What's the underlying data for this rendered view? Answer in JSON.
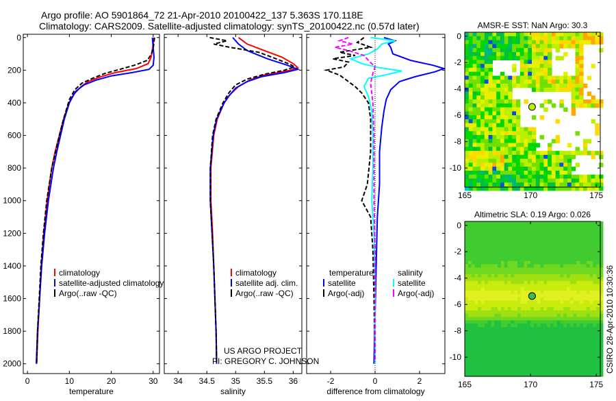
{
  "title": {
    "line1": "Argo profile: AO 5901864_72 21-Apr-2010 20100422_137 5.363S 170.118E",
    "line2": "Climatology: CARS2009. Satellite-adjusted climatology: synTS_20100422.nc (0.57d later)"
  },
  "credit": {
    "line1": "US ARGO PROJECT",
    "line2": "PI: GREGORY C. JOHNSON"
  },
  "stamp": "CSIRO 28-Apr-2010 10:30:36",
  "colors": {
    "climatology": "#ff0000",
    "satellite": "#0000ff",
    "argo": "#000000",
    "sal_satellite": "#00ffff",
    "sal_argo": "#ff00ff"
  },
  "chart_data": [
    {
      "type": "line",
      "xlabel": "temperature",
      "ylabel": "",
      "xlim": [
        -1,
        31.5
      ],
      "ylim": [
        2060,
        -20
      ],
      "xticks": [
        "0",
        "10",
        "20",
        "30"
      ],
      "xtick_values": [
        0,
        10,
        20,
        30
      ],
      "yticks": [
        "0",
        "200",
        "400",
        "600",
        "800",
        "1000",
        "1200",
        "1400",
        "1600",
        "1800",
        "2000"
      ],
      "ytick_values": [
        0,
        200,
        400,
        600,
        800,
        1000,
        1200,
        1400,
        1600,
        1800,
        2000
      ],
      "legend": [
        "climatology",
        "satellite-adjusted climatology",
        "Argo(..raw -QC)"
      ],
      "series": [
        {
          "name": "climatology",
          "color": "#ff0000",
          "points": [
            [
              0,
              30.2
            ],
            [
              60,
              29.9
            ],
            [
              120,
              29.5
            ],
            [
              160,
              28.8
            ],
            [
              190,
              26
            ],
            [
              215,
              21
            ],
            [
              240,
              17.5
            ],
            [
              270,
              14.5
            ],
            [
              300,
              12.8
            ],
            [
              350,
              11
            ],
            [
              400,
              9.9
            ],
            [
              500,
              8.6
            ],
            [
              600,
              7.6
            ],
            [
              700,
              6.6
            ],
            [
              800,
              5.8
            ],
            [
              1000,
              4.7
            ],
            [
              1200,
              3.9
            ],
            [
              1400,
              3.3
            ],
            [
              1600,
              2.9
            ],
            [
              1800,
              2.5
            ],
            [
              2000,
              2.2
            ]
          ]
        },
        {
          "name": "satellite-adjusted climatology",
          "color": "#0000ff",
          "points": [
            [
              0,
              29.8
            ],
            [
              60,
              30
            ],
            [
              120,
              30.2
            ],
            [
              170,
              30
            ],
            [
              195,
              29
            ],
            [
              215,
              25
            ],
            [
              235,
              20
            ],
            [
              260,
              16.5
            ],
            [
              290,
              13.5
            ],
            [
              330,
              11.5
            ],
            [
              400,
              10
            ],
            [
              500,
              8.8
            ],
            [
              600,
              7.9
            ],
            [
              700,
              7
            ],
            [
              800,
              6.2
            ],
            [
              1000,
              5
            ],
            [
              1200,
              4.1
            ],
            [
              1400,
              3.4
            ],
            [
              1600,
              2.9
            ],
            [
              1800,
              2.4
            ],
            [
              2000,
              2.1
            ]
          ]
        },
        {
          "name": "Argo(..raw -QC)",
          "color": "#000000",
          "points": [
            [
              0,
              30.3
            ],
            [
              50,
              30.1
            ],
            [
              100,
              29.6
            ],
            [
              140,
              28.6
            ],
            [
              170,
              25.5
            ],
            [
              195,
              22
            ],
            [
              220,
              18.5
            ],
            [
              250,
              15.5
            ],
            [
              280,
              13
            ],
            [
              320,
              11.3
            ],
            [
              380,
              10
            ],
            [
              500,
              8.6
            ],
            [
              600,
              7.6
            ],
            [
              800,
              5.8
            ],
            [
              1000,
              4.6
            ],
            [
              1200,
              3.8
            ],
            [
              1400,
              3.2
            ],
            [
              1600,
              2.8
            ],
            [
              1800,
              2.4
            ],
            [
              1990,
              2.2
            ]
          ]
        }
      ]
    },
    {
      "type": "line",
      "xlabel": "salinity",
      "xlim": [
        33.76,
        36.15
      ],
      "ylim": [
        2060,
        -20
      ],
      "xticks": [
        "34",
        "34.5",
        "35",
        "35.5",
        "36"
      ],
      "xtick_values": [
        34,
        34.5,
        35,
        35.5,
        36
      ],
      "legend": [
        "climatology",
        "satellite adj. clim.",
        "Argo(..raw -QC)"
      ],
      "series": [
        {
          "name": "climatology",
          "color": "#ff0000",
          "points": [
            [
              0,
              35.05
            ],
            [
              40,
              35.2
            ],
            [
              80,
              35.5
            ],
            [
              120,
              35.8
            ],
            [
              160,
              36
            ],
            [
              185,
              36.08
            ],
            [
              205,
              35.9
            ],
            [
              230,
              35.5
            ],
            [
              260,
              35.25
            ],
            [
              300,
              35.05
            ],
            [
              350,
              34.9
            ],
            [
              400,
              34.8
            ],
            [
              500,
              34.68
            ],
            [
              600,
              34.62
            ],
            [
              800,
              34.57
            ],
            [
              1000,
              34.57
            ],
            [
              1200,
              34.6
            ],
            [
              1400,
              34.62
            ],
            [
              1600,
              34.64
            ],
            [
              1800,
              34.66
            ],
            [
              2000,
              34.67
            ]
          ]
        },
        {
          "name": "satellite adj. clim.",
          "color": "#0000ff",
          "points": [
            [
              0,
              34.95
            ],
            [
              40,
              35.05
            ],
            [
              80,
              35.2
            ],
            [
              130,
              35.55
            ],
            [
              170,
              35.9
            ],
            [
              195,
              36.08
            ],
            [
              215,
              35.85
            ],
            [
              240,
              35.45
            ],
            [
              270,
              35.2
            ],
            [
              310,
              35
            ],
            [
              360,
              34.88
            ],
            [
              400,
              34.8
            ],
            [
              500,
              34.67
            ],
            [
              600,
              34.61
            ],
            [
              800,
              34.56
            ],
            [
              1000,
              34.56
            ],
            [
              1200,
              34.59
            ],
            [
              1400,
              34.62
            ],
            [
              1600,
              34.64
            ],
            [
              1800,
              34.66
            ],
            [
              2000,
              34.67
            ]
          ]
        },
        {
          "name": "Argo(..raw -QC)",
          "color": "#000000",
          "points": [
            [
              0,
              34.55
            ],
            [
              20,
              34.85
            ],
            [
              40,
              34.62
            ],
            [
              60,
              34.9
            ],
            [
              90,
              35.4
            ],
            [
              130,
              35.7
            ],
            [
              165,
              35.95
            ],
            [
              180,
              36.02
            ],
            [
              200,
              35.85
            ],
            [
              225,
              35.5
            ],
            [
              255,
              35.2
            ],
            [
              290,
              35
            ],
            [
              340,
              34.88
            ],
            [
              400,
              34.78
            ],
            [
              500,
              34.66
            ],
            [
              600,
              34.6
            ],
            [
              800,
              34.56
            ],
            [
              1000,
              34.56
            ],
            [
              1200,
              34.59
            ],
            [
              1400,
              34.62
            ],
            [
              1600,
              34.64
            ],
            [
              1800,
              34.66
            ],
            [
              1990,
              34.67
            ]
          ]
        }
      ]
    },
    {
      "type": "line",
      "xlabel": "difference from climatology",
      "xlim": [
        -3.08,
        3.14
      ],
      "ylim": [
        2060,
        -20
      ],
      "xticks": [
        "-2",
        "0",
        "2"
      ],
      "xtick_values": [
        -2,
        0,
        2
      ],
      "legend_headers": [
        "temperature",
        "salinity"
      ],
      "legend": [
        "satellite",
        "Argo(-adj)",
        "satellite",
        "Argo(-adj)"
      ],
      "series": [
        {
          "name": "temperature satellite",
          "color": "#0000ff",
          "points": [
            [
              0,
              0.4
            ],
            [
              20,
              0.9
            ],
            [
              40,
              0.6
            ],
            [
              60,
              0.7
            ],
            [
              100,
              0.8
            ],
            [
              140,
              1.6
            ],
            [
              170,
              2.6
            ],
            [
              190,
              3.1
            ],
            [
              210,
              2.7
            ],
            [
              240,
              1.8
            ],
            [
              270,
              1.1
            ],
            [
              320,
              0.7
            ],
            [
              380,
              0.5
            ],
            [
              450,
              0.4
            ],
            [
              550,
              0.3
            ],
            [
              700,
              0.2
            ],
            [
              900,
              0.2
            ],
            [
              1100,
              0.1
            ],
            [
              1400,
              0.05
            ],
            [
              1700,
              0
            ],
            [
              2000,
              -0.05
            ]
          ]
        },
        {
          "name": "temperature Argo(-adj)",
          "color": "#000000",
          "points": [
            [
              0,
              -0.5
            ],
            [
              30,
              -0.8
            ],
            [
              60,
              -0.2
            ],
            [
              90,
              -1.6
            ],
            [
              110,
              -0.9
            ],
            [
              130,
              -1.9
            ],
            [
              150,
              -1.2
            ],
            [
              180,
              -1.4
            ],
            [
              200,
              -2.2
            ],
            [
              230,
              -1.6
            ],
            [
              260,
              -1.3
            ],
            [
              300,
              -0.9
            ],
            [
              340,
              -0.6
            ],
            [
              400,
              -0.3
            ],
            [
              500,
              -0.2
            ],
            [
              700,
              -0.2
            ],
            [
              900,
              -0.35
            ],
            [
              1000,
              -0.6
            ],
            [
              1100,
              -0.2
            ],
            [
              1300,
              -0.1
            ],
            [
              1600,
              -0.05
            ],
            [
              1990,
              0
            ]
          ]
        },
        {
          "name": "salinity satellite",
          "color": "#00ffff",
          "points": [
            [
              0,
              -0.2
            ],
            [
              20,
              0.9
            ],
            [
              40,
              0.3
            ],
            [
              70,
              0.1
            ],
            [
              100,
              -0.3
            ],
            [
              130,
              -1.1
            ],
            [
              160,
              -0.6
            ],
            [
              185,
              0.2
            ],
            [
              205,
              1.2
            ],
            [
              225,
              0.6
            ],
            [
              250,
              -0.3
            ],
            [
              300,
              -0.5
            ],
            [
              360,
              -0.3
            ],
            [
              450,
              -0.15
            ],
            [
              600,
              -0.1
            ],
            [
              800,
              -0.1
            ],
            [
              1000,
              -0.15
            ],
            [
              1200,
              -0.05
            ],
            [
              1500,
              0
            ],
            [
              2000,
              0
            ]
          ]
        },
        {
          "name": "salinity Argo(-adj)",
          "color": "#ff00ff",
          "points": [
            [
              0,
              -1.2
            ],
            [
              20,
              -1.6
            ],
            [
              40,
              -1
            ],
            [
              60,
              -1.8
            ],
            [
              80,
              -1.2
            ],
            [
              110,
              -0.5
            ],
            [
              140,
              -0.3
            ],
            [
              180,
              0
            ],
            [
              220,
              -0.1
            ],
            [
              280,
              -0.2
            ],
            [
              400,
              -0.1
            ],
            [
              600,
              -0.05
            ],
            [
              800,
              -0.05
            ],
            [
              1000,
              -0.05
            ],
            [
              1300,
              0
            ],
            [
              1600,
              0
            ],
            [
              1990,
              0
            ]
          ]
        }
      ]
    },
    {
      "type": "heatmap",
      "title": "AMSR-E SST: NaN Argo: 30.3",
      "xlim": [
        165,
        175.3
      ],
      "ylim": [
        -11.45,
        0.3
      ],
      "xticks": [
        "165",
        "170",
        "175"
      ],
      "xtick_values": [
        165,
        170,
        175
      ],
      "yticks": [
        "0",
        "-2",
        "-4",
        "-6",
        "-8",
        "-10"
      ],
      "ytick_values": [
        0,
        -2,
        -4,
        -6,
        -8,
        -10
      ],
      "argo_position": {
        "lon": 170.118,
        "lat": -5.363
      }
    },
    {
      "type": "heatmap",
      "title": "Altimetric SLA: 0.19 Argo: 0.026",
      "xlim": [
        165,
        175.3
      ],
      "ylim": [
        -11.45,
        0.3
      ],
      "xticks": [
        "165",
        "170",
        "175"
      ],
      "xtick_values": [
        165,
        170,
        175
      ],
      "yticks": [
        "0",
        "-2",
        "-4",
        "-6",
        "-8",
        "-10"
      ],
      "ytick_values": [
        0,
        -2,
        -4,
        -6,
        -8,
        -10
      ],
      "argo_position": {
        "lon": 170.118,
        "lat": -5.363
      }
    }
  ]
}
